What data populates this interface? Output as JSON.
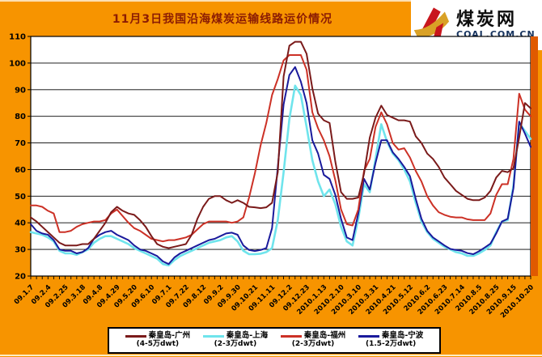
{
  "header": {
    "title": "11月3日我国沿海煤炭运输线路运价情况",
    "title_color": "#8B1C04"
  },
  "logo": {
    "site_name": "煤炭网",
    "site_url": "COAL.COM.CN",
    "mark_colors": {
      "red": "#C8161D",
      "gold": "#D9A126"
    }
  },
  "page": {
    "background": "#F79400",
    "right_strip_color": "#E05A00"
  },
  "chart_data": {
    "type": "line",
    "title": "11月3日我国沿海煤炭运输线路运价情况",
    "ylabel": "",
    "xlabel": "",
    "ylim": [
      20,
      110
    ],
    "y_ticks": [
      110,
      100,
      90,
      80,
      70,
      60,
      50,
      40,
      30,
      20
    ],
    "grid": "horizontal",
    "plot_bg": "#FFFFFF",
    "n_points": 88,
    "x_label_every": 3,
    "x_labels": [
      "09.1.7",
      "09.2.4",
      "09.2.25",
      "09.3.18",
      "09.4.8",
      "09.4.29",
      "09.5.20",
      "09.6.10",
      "09.7.1",
      "09.7.22",
      "09.8.12",
      "09.9.2",
      "09.9.30",
      "09.10.21",
      "09.11.11",
      "09.12.2",
      "09.12.23",
      "2010.1.13",
      "2010.2.10",
      "2010.3.10",
      "2010.3.31",
      "2010.4.21",
      "2010.5.12",
      "2010.6.2",
      "2010.6.23",
      "2010.7.14",
      "2010.8.5",
      "2010.8.25",
      "2010.9.15",
      "2010.10.20"
    ],
    "legend_position": "bottom",
    "series": [
      {
        "name": "秦皇岛-广州",
        "tonnage": "(4-5万dwt)",
        "color": "#7A1A1A",
        "values": [
          42,
          40.5,
          38.5,
          36.5,
          34.5,
          32.5,
          31.5,
          31.5,
          31.5,
          32,
          32,
          34,
          37,
          40,
          44,
          46,
          44.5,
          43.5,
          43,
          41,
          38.5,
          35,
          32,
          31,
          30.5,
          31,
          31.5,
          32,
          35.5,
          41.5,
          46,
          49,
          50,
          50,
          48.5,
          47.5,
          48.5,
          47.5,
          46,
          45.8,
          45.5,
          45.8,
          47.5,
          59,
          95,
          106.5,
          108,
          108,
          103.5,
          90.5,
          81,
          78.5,
          77.5,
          63,
          51.5,
          49,
          49,
          49.5,
          58.5,
          72,
          79.5,
          84,
          80.5,
          79.5,
          78.5,
          78.5,
          78,
          72.5,
          70,
          66,
          64,
          61,
          57,
          54.5,
          52,
          50.5,
          49,
          48.5,
          48.5,
          49.5,
          52,
          57,
          59.5,
          59,
          60.5,
          72,
          85,
          83
        ]
      },
      {
        "name": "秦皇岛-上海",
        "tonnage": "(2-3万dwt)",
        "color": "#6FE4EC",
        "values": [
          36.5,
          36,
          35.5,
          34.5,
          33,
          29.5,
          28.5,
          28.5,
          28,
          29,
          30,
          32.5,
          34,
          35,
          35,
          34,
          33,
          32,
          30.5,
          29.5,
          28.5,
          27.5,
          26.5,
          24.5,
          24,
          26,
          27.5,
          28.5,
          29.5,
          30.5,
          31.5,
          32.5,
          33,
          33.5,
          34.5,
          35,
          33,
          29.5,
          28.2,
          28.2,
          28.4,
          29,
          30.5,
          41,
          59,
          79,
          91.5,
          88,
          76,
          63.5,
          55.5,
          50,
          52.5,
          47,
          38.5,
          33,
          31.5,
          41.5,
          54.5,
          51.5,
          64,
          77,
          70.5,
          66,
          63.5,
          60,
          55.5,
          47.5,
          40.5,
          36.5,
          34,
          32.5,
          31,
          30,
          29,
          28.5,
          27.6,
          27.6,
          28.5,
          29.8,
          31.5,
          36.5,
          40.5,
          41,
          54,
          77.5,
          74.5,
          71.5
        ]
      },
      {
        "name": "秦皇岛-福州",
        "tonnage": "(2-3万dwt)",
        "color": "#CC3126",
        "values": [
          46.5,
          46.5,
          46,
          44.5,
          43.5,
          36.5,
          36.5,
          37,
          38.5,
          39.5,
          40,
          40.5,
          40.5,
          41,
          43.5,
          45,
          42.5,
          40,
          38,
          37,
          35.5,
          34,
          33.5,
          33,
          33.5,
          33.5,
          34,
          34.5,
          35.5,
          37.5,
          39.5,
          40.5,
          40.5,
          40.5,
          40.5,
          40,
          40.5,
          42,
          49.5,
          58.5,
          69,
          77.5,
          88,
          94,
          101,
          103,
          103,
          103,
          97.5,
          81.5,
          75.5,
          71,
          65,
          56,
          45,
          39.5,
          39,
          45,
          59.5,
          64,
          76,
          81.5,
          77,
          70,
          67.5,
          68,
          64.5,
          59.5,
          55.5,
          50,
          46.5,
          44,
          43,
          42.3,
          42,
          42,
          41.3,
          41,
          41,
          41,
          43.5,
          50.5,
          54.5,
          54.5,
          64,
          88.5,
          82.5,
          80
        ]
      },
      {
        "name": "秦皇岛-宁波",
        "tonnage": "(1.5-2万dwt)",
        "color": "#1A1A9C",
        "values": [
          39.5,
          37,
          36,
          35.5,
          33.5,
          30,
          29.5,
          29.5,
          28.5,
          29,
          30.5,
          34,
          35.5,
          36.5,
          37,
          35.5,
          34.5,
          33.5,
          31.5,
          30,
          29.5,
          28.5,
          27.5,
          25.5,
          24.5,
          27,
          28.5,
          29.5,
          30.5,
          31.5,
          32.5,
          33.5,
          34,
          35,
          36,
          36.3,
          35.5,
          31.5,
          29.8,
          29.4,
          29.8,
          30.5,
          38,
          61,
          84.5,
          95.5,
          98.5,
          93,
          85,
          71,
          66,
          58,
          56.5,
          50.5,
          41.5,
          34.5,
          33.5,
          43.5,
          56.5,
          52.5,
          62.5,
          71,
          71,
          66.5,
          64,
          61,
          57.5,
          49,
          41.5,
          37,
          34.5,
          33,
          31.5,
          30.2,
          29.8,
          29.5,
          28.6,
          28.2,
          29.3,
          30.7,
          32.2,
          36,
          40.5,
          41.5,
          53,
          78,
          73.5,
          68.5
        ]
      }
    ]
  }
}
